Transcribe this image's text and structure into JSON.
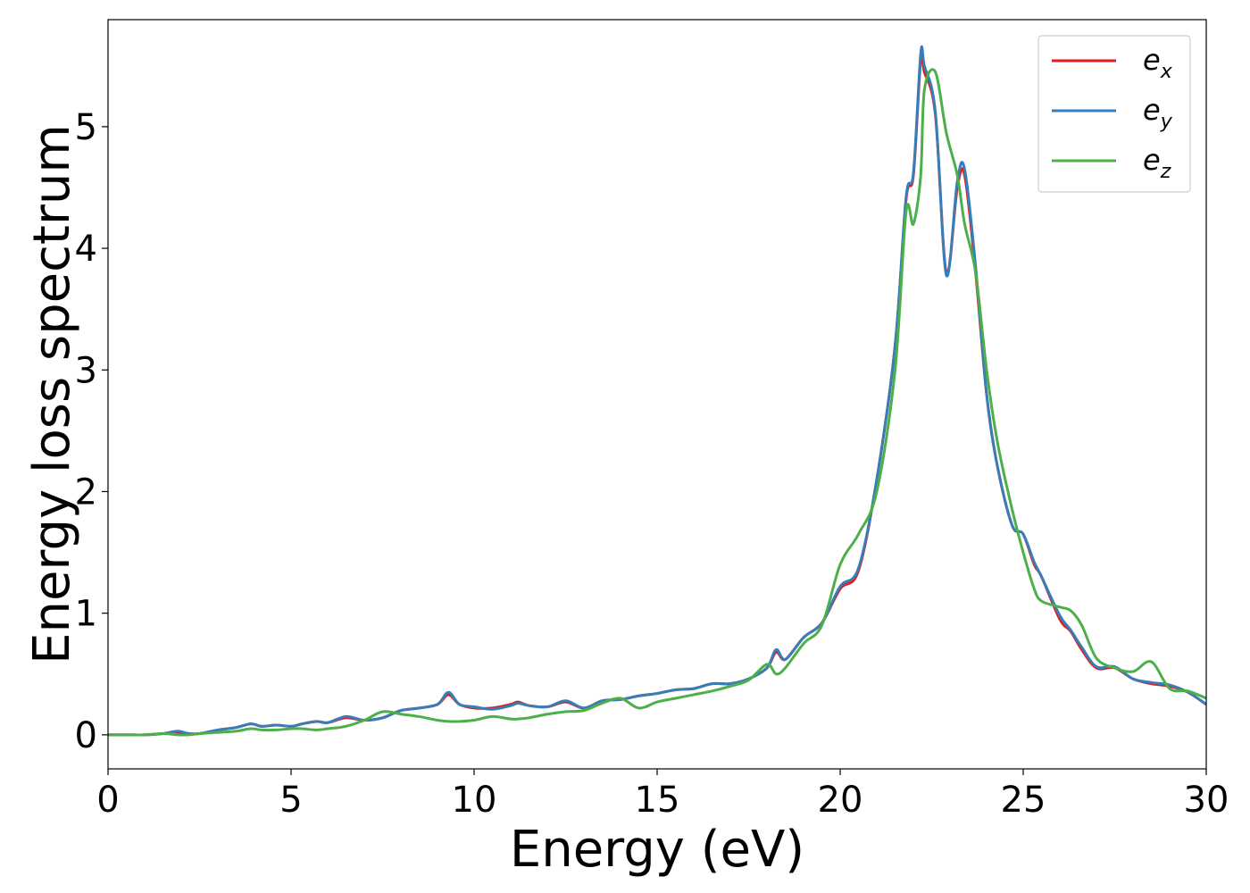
{
  "chart_data": {
    "type": "line",
    "xlabel": "Energy (eV)",
    "ylabel": "Energy loss spectrum",
    "xlim": [
      0,
      30
    ],
    "ylim": [
      -0.28,
      5.88
    ],
    "xticks": [
      0,
      5,
      10,
      15,
      20,
      25,
      30
    ],
    "xtick_labels": [
      "0",
      "5",
      "10",
      "15",
      "20",
      "25",
      "30"
    ],
    "yticks": [
      0,
      1,
      2,
      3,
      4,
      5
    ],
    "ytick_labels": [
      "0",
      "1",
      "2",
      "3",
      "4",
      "5"
    ],
    "grid": false,
    "legend_position": "top-right",
    "x": [
      0,
      0.5,
      1,
      1.5,
      1.9,
      2.2,
      2.5,
      3,
      3.5,
      3.9,
      4.2,
      4.6,
      5,
      5.3,
      5.7,
      6,
      6.5,
      7,
      7.5,
      8,
      8.5,
      9,
      9.3,
      9.6,
      10,
      10.5,
      11,
      11.2,
      11.5,
      12,
      12.5,
      13,
      13.5,
      14,
      14.5,
      15,
      15.5,
      16,
      16.5,
      17,
      17.5,
      18,
      18.25,
      18.5,
      19,
      19.5,
      20,
      20.5,
      21,
      21.5,
      21.8,
      22,
      22.2,
      22.3,
      22.6,
      22.9,
      23.2,
      23.4,
      23.7,
      24,
      24.3,
      24.7,
      25,
      25.3,
      25.5,
      26,
      26.3,
      26.6,
      27,
      27.5,
      28,
      28.5,
      29,
      29.5,
      30
    ],
    "series": [
      {
        "name": "e_x",
        "label_base": "e",
        "label_sub": "x",
        "color": "#e41a1c",
        "values": [
          0,
          0,
          0,
          0.01,
          0.02,
          0.01,
          0.01,
          0.04,
          0.06,
          0.09,
          0.07,
          0.08,
          0.07,
          0.09,
          0.11,
          0.1,
          0.14,
          0.12,
          0.14,
          0.2,
          0.22,
          0.25,
          0.33,
          0.25,
          0.22,
          0.22,
          0.25,
          0.27,
          0.24,
          0.23,
          0.27,
          0.22,
          0.28,
          0.29,
          0.32,
          0.34,
          0.37,
          0.38,
          0.42,
          0.42,
          0.46,
          0.55,
          0.68,
          0.62,
          0.8,
          0.92,
          1.2,
          1.35,
          2.1,
          3.2,
          4.4,
          4.6,
          5.55,
          5.45,
          5.1,
          3.8,
          4.5,
          4.6,
          3.8,
          2.8,
          2.2,
          1.72,
          1.65,
          1.4,
          1.3,
          0.95,
          0.85,
          0.7,
          0.55,
          0.55,
          0.46,
          0.42,
          0.4,
          0.35,
          0.25
        ]
      },
      {
        "name": "e_y",
        "label_base": "e",
        "label_sub": "y",
        "color": "#377eb8",
        "values": [
          0,
          0,
          0,
          0.01,
          0.03,
          0.01,
          0.01,
          0.04,
          0.06,
          0.09,
          0.07,
          0.08,
          0.07,
          0.09,
          0.11,
          0.1,
          0.15,
          0.12,
          0.14,
          0.2,
          0.22,
          0.25,
          0.35,
          0.25,
          0.23,
          0.21,
          0.24,
          0.26,
          0.24,
          0.23,
          0.28,
          0.22,
          0.28,
          0.29,
          0.32,
          0.34,
          0.37,
          0.38,
          0.42,
          0.42,
          0.46,
          0.55,
          0.7,
          0.62,
          0.8,
          0.92,
          1.22,
          1.37,
          2.1,
          3.2,
          4.42,
          4.62,
          5.6,
          5.5,
          5.12,
          3.78,
          4.55,
          4.65,
          3.85,
          2.8,
          2.2,
          1.72,
          1.65,
          1.42,
          1.3,
          0.98,
          0.86,
          0.72,
          0.56,
          0.56,
          0.46,
          0.43,
          0.41,
          0.35,
          0.25
        ]
      },
      {
        "name": "e_z",
        "label_base": "e",
        "label_sub": "z",
        "color": "#4daf4a",
        "values": [
          0,
          0,
          0,
          0.01,
          0.0,
          0.0,
          0.01,
          0.02,
          0.03,
          0.05,
          0.04,
          0.04,
          0.05,
          0.05,
          0.04,
          0.05,
          0.07,
          0.12,
          0.19,
          0.17,
          0.15,
          0.12,
          0.11,
          0.11,
          0.12,
          0.15,
          0.13,
          0.13,
          0.14,
          0.17,
          0.19,
          0.2,
          0.26,
          0.3,
          0.22,
          0.27,
          0.3,
          0.33,
          0.36,
          0.4,
          0.45,
          0.58,
          0.5,
          0.55,
          0.75,
          0.9,
          1.4,
          1.65,
          2.0,
          3.0,
          4.3,
          4.2,
          4.6,
          5.3,
          5.45,
          4.95,
          4.6,
          4.2,
          3.8,
          3.0,
          2.4,
          1.85,
          1.5,
          1.2,
          1.1,
          1.05,
          1.02,
          0.9,
          0.63,
          0.55,
          0.52,
          0.6,
          0.38,
          0.36,
          0.3
        ]
      }
    ]
  }
}
